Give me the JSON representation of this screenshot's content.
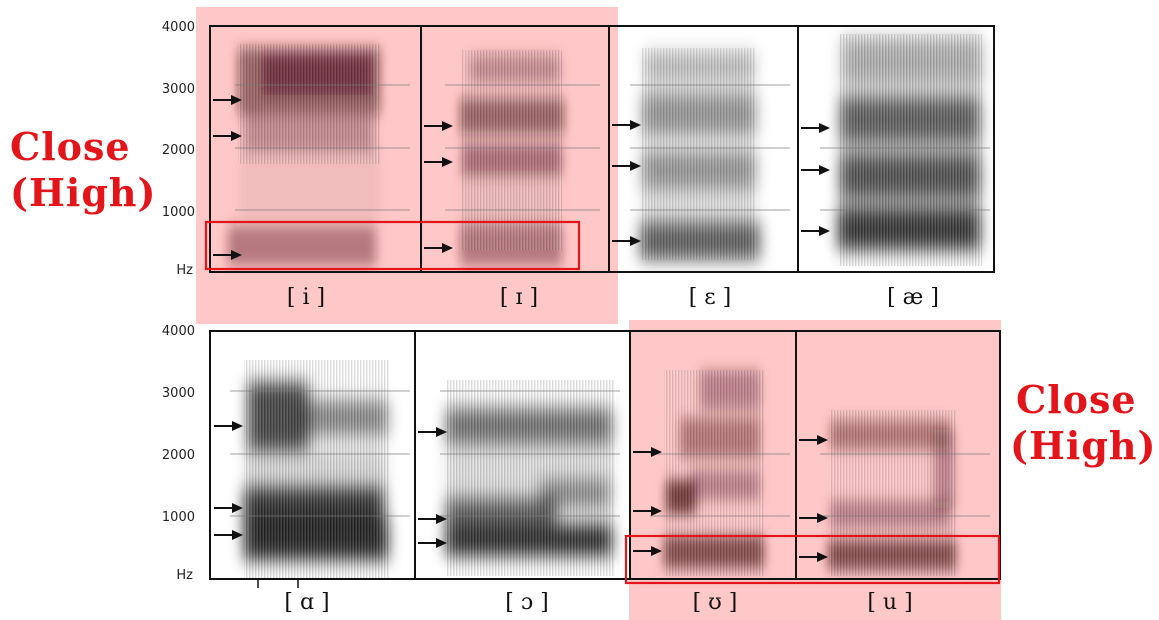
{
  "y_axis": {
    "ticks": [
      "4000",
      "3000",
      "2000",
      "1000"
    ],
    "unit": "Hz"
  },
  "rows": [
    {
      "vowels": [
        {
          "symbol": "[ i ]"
        },
        {
          "symbol": "[ ɪ ]"
        },
        {
          "symbol": "[ ɛ ]"
        },
        {
          "symbol": "[ æ ]"
        }
      ]
    },
    {
      "vowels": [
        {
          "symbol": "[ ɑ ]"
        },
        {
          "symbol": "[ ɔ ]"
        },
        {
          "symbol": "[ ʊ ]"
        },
        {
          "symbol": "[ u ]"
        }
      ]
    }
  ],
  "annotations": {
    "left": {
      "line1": "Close",
      "line2": "(High)"
    },
    "right": {
      "line1": "Close",
      "line2": "(High)"
    }
  },
  "colors": {
    "highlight": "#ffc8c8",
    "annotation": "#e4141b",
    "box": "#e4141b"
  }
}
